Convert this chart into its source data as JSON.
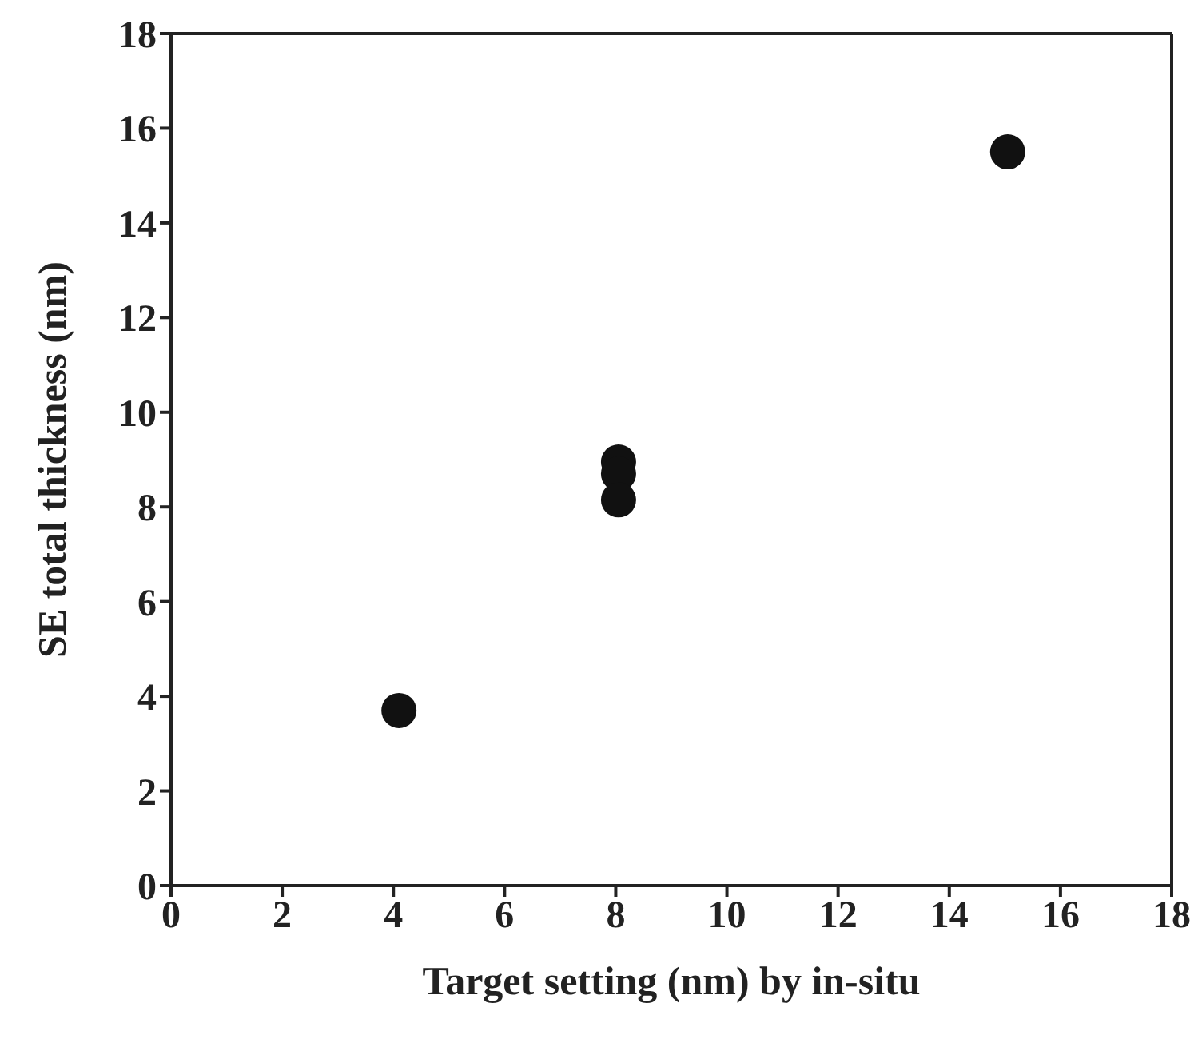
{
  "chart_data": {
    "type": "scatter",
    "xlabel": "Target setting (nm) by in-situ",
    "ylabel": "SE total thickness (nm)",
    "x": [
      4.1,
      8.05,
      8.05,
      8.05,
      15.05
    ],
    "values": [
      3.7,
      8.95,
      8.7,
      8.15,
      15.5
    ],
    "color": "#111111",
    "marker": "circle",
    "grid": false,
    "xlim": [
      0,
      18
    ],
    "xticks": [
      0,
      2,
      4,
      6,
      8,
      10,
      12,
      14,
      16,
      18
    ],
    "ylim": [
      0,
      18
    ],
    "yticks": [
      0,
      2,
      4,
      6,
      8,
      10,
      12,
      14,
      16,
      18
    ]
  }
}
